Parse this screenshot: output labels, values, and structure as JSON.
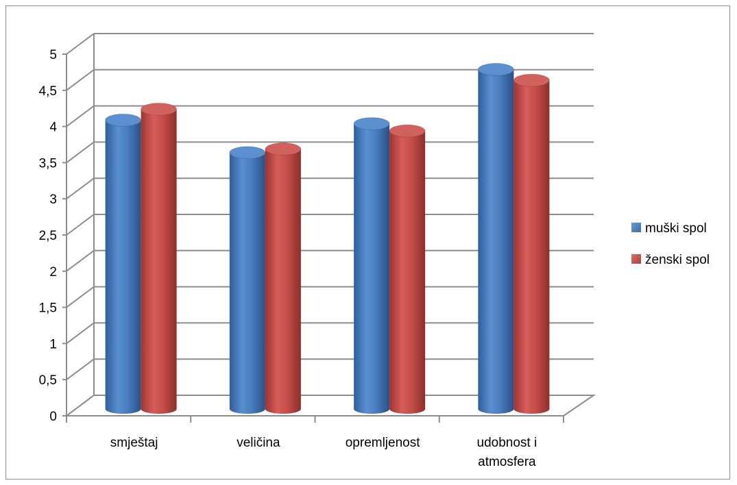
{
  "chart_data": {
    "type": "bar",
    "categories": [
      "smještaj",
      "veličina",
      "opremljenost",
      "udobnost i atmosfera"
    ],
    "series": [
      {
        "name": "muški spol",
        "values": [
          4.05,
          3.6,
          4.0,
          4.75
        ],
        "color": "#4f81bd"
      },
      {
        "name": "ženski spol",
        "values": [
          4.2,
          3.65,
          3.9,
          4.6
        ],
        "color": "#c0504d"
      }
    ],
    "y_ticks": [
      "0",
      "0,5",
      "1",
      "1,5",
      "2",
      "2,5",
      "3",
      "3,5",
      "4",
      "4,5",
      "5"
    ],
    "ylim": [
      0,
      5
    ],
    "grid": true,
    "legend": "right",
    "style": "3d-cylinder"
  }
}
